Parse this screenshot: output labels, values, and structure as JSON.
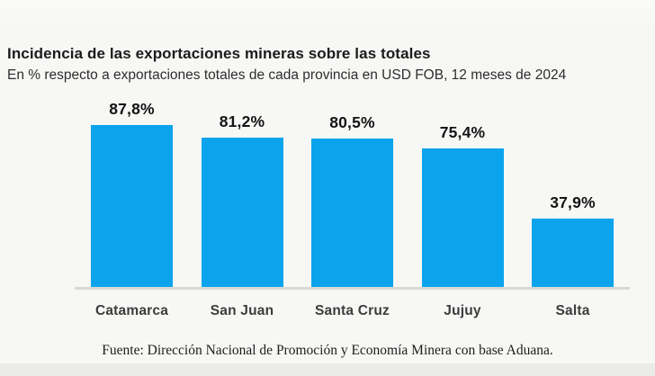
{
  "chart_data": {
    "type": "bar",
    "title": "Incidencia de las exportaciones mineras sobre las totales",
    "subtitle": "En % respecto a exportaciones totales de cada provincia en USD FOB, 12 meses de 2024",
    "categories": [
      "Catamarca",
      "San Juan",
      "Santa Cruz",
      "Jujuy",
      "Salta"
    ],
    "values": [
      87.8,
      81.2,
      80.5,
      75.4,
      37.9
    ],
    "value_labels": [
      "87,8%",
      "81,2%",
      "80,5%",
      "75,4%",
      "37,9%"
    ],
    "unit": "%",
    "ylim": [
      0,
      100
    ],
    "grid": "off",
    "legend": "none",
    "bar_color": "#0ba4ec",
    "axis_line_color": "#d8d8d6",
    "source": "Fuente: Dirección Nacional de Promoción y Economía Minera con base Aduana."
  }
}
